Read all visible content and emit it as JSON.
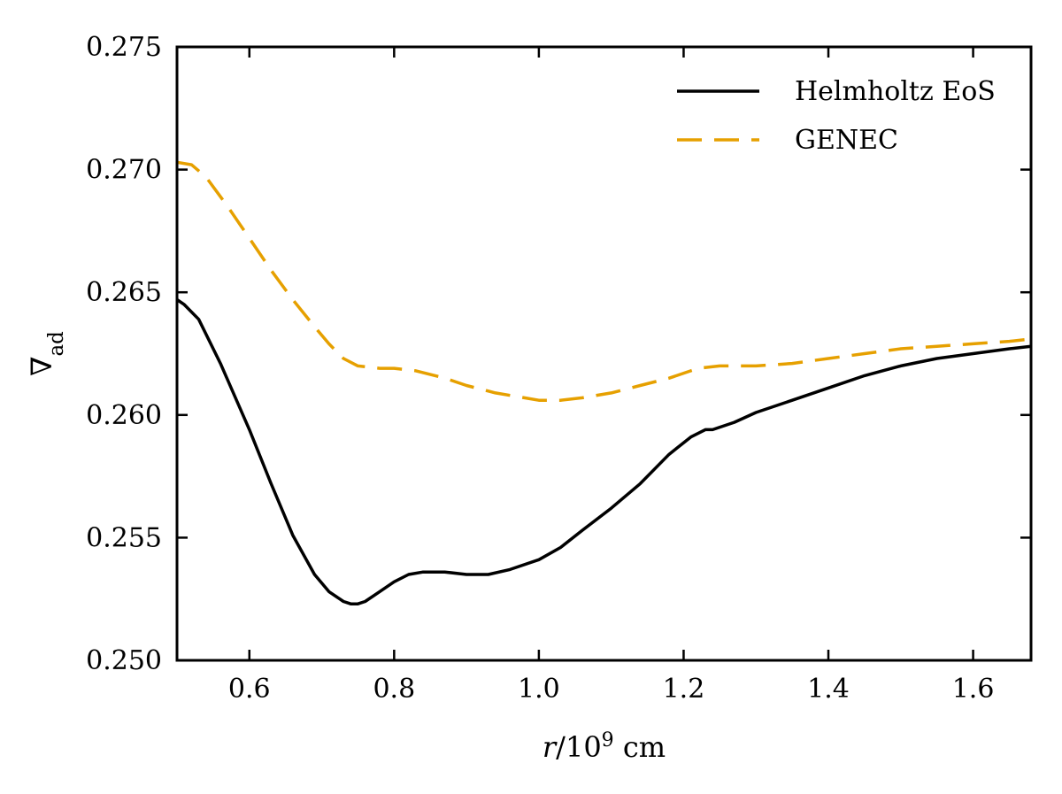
{
  "chart_data": {
    "type": "line",
    "title": "",
    "xlabel": {
      "var": "r",
      "sep": "/10",
      "exp": "9",
      "unit": " cm"
    },
    "ylabel": {
      "base": "∇",
      "sub": "ad"
    },
    "xlim": [
      0.5,
      1.68
    ],
    "ylim": [
      0.25,
      0.275
    ],
    "xticks": [
      0.6,
      0.8,
      1.0,
      1.2,
      1.4,
      1.6
    ],
    "xtick_labels": [
      "0.6",
      "0.8",
      "1.0",
      "1.2",
      "1.4",
      "1.6"
    ],
    "yticks": [
      0.25,
      0.255,
      0.26,
      0.265,
      0.27,
      0.275
    ],
    "ytick_labels": [
      "0.250",
      "0.255",
      "0.260",
      "0.265",
      "0.270",
      "0.275"
    ],
    "grid": false,
    "legend_position": "top-right",
    "series": [
      {
        "name": "Helmholtz EoS",
        "color": "#000000",
        "style": "solid",
        "x": [
          0.5,
          0.51,
          0.53,
          0.56,
          0.6,
          0.63,
          0.66,
          0.69,
          0.71,
          0.73,
          0.74,
          0.75,
          0.76,
          0.78,
          0.8,
          0.82,
          0.84,
          0.87,
          0.9,
          0.93,
          0.96,
          1.0,
          1.03,
          1.06,
          1.1,
          1.14,
          1.18,
          1.21,
          1.23,
          1.24,
          1.27,
          1.3,
          1.35,
          1.4,
          1.45,
          1.5,
          1.55,
          1.6,
          1.65,
          1.68
        ],
        "y": [
          0.2647,
          0.2645,
          0.2639,
          0.2621,
          0.2594,
          0.2572,
          0.2551,
          0.2535,
          0.2528,
          0.2524,
          0.2523,
          0.2523,
          0.2524,
          0.2528,
          0.2532,
          0.2535,
          0.2536,
          0.2536,
          0.2535,
          0.2535,
          0.2537,
          0.2541,
          0.2546,
          0.2553,
          0.2562,
          0.2572,
          0.2584,
          0.2591,
          0.2594,
          0.2594,
          0.2597,
          0.2601,
          0.2606,
          0.2611,
          0.2616,
          0.262,
          0.2623,
          0.2625,
          0.2627,
          0.2628
        ]
      },
      {
        "name": "GENEC",
        "color": "#E6A000",
        "style": "dashed",
        "x": [
          0.5,
          0.52,
          0.54,
          0.57,
          0.6,
          0.63,
          0.66,
          0.69,
          0.71,
          0.73,
          0.75,
          0.78,
          0.8,
          0.83,
          0.87,
          0.9,
          0.94,
          0.98,
          1.0,
          1.03,
          1.06,
          1.1,
          1.14,
          1.18,
          1.22,
          1.25,
          1.3,
          1.35,
          1.4,
          1.45,
          1.5,
          1.55,
          1.6,
          1.65,
          1.68
        ],
        "y": [
          0.2703,
          0.2702,
          0.2697,
          0.2685,
          0.2672,
          0.2659,
          0.2647,
          0.2636,
          0.2629,
          0.2623,
          0.262,
          0.2619,
          0.2619,
          0.2618,
          0.2615,
          0.2612,
          0.2609,
          0.2607,
          0.2606,
          0.2606,
          0.2607,
          0.2609,
          0.2612,
          0.2615,
          0.2619,
          0.262,
          0.262,
          0.2621,
          0.2623,
          0.2625,
          0.2627,
          0.2628,
          0.2629,
          0.263,
          0.2631
        ]
      }
    ]
  }
}
